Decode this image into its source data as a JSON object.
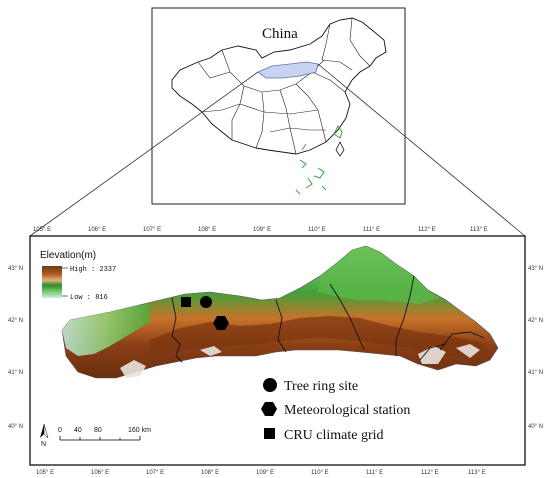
{
  "inset": {
    "title": "China"
  },
  "main_map": {
    "elevation": {
      "title": "Elevation(m)",
      "high_label": "High : 2337",
      "low_label": "Low : 816",
      "colors": [
        "#7a4a1c",
        "#a0521c",
        "#d9a066",
        "#2e8b2e",
        "#7cc96c",
        "#b7e6d2"
      ]
    },
    "ticks": {
      "longitudes": [
        "105° E",
        "106° E",
        "107° E",
        "108° E",
        "109° E",
        "110° E",
        "111° E",
        "112° E",
        "113° E"
      ],
      "latitudes": [
        "43° N",
        "42° N",
        "41° N",
        "40° N"
      ]
    },
    "scale_bar": {
      "labels": [
        "0",
        "40",
        "80",
        "160 km"
      ]
    },
    "north_label": "N",
    "legend": {
      "items": [
        {
          "label": "Tree ring site",
          "symbol": "circle"
        },
        {
          "label": "Meteorological station",
          "symbol": "hexagon"
        },
        {
          "label": "CRU climate grid",
          "symbol": "square"
        }
      ]
    }
  }
}
